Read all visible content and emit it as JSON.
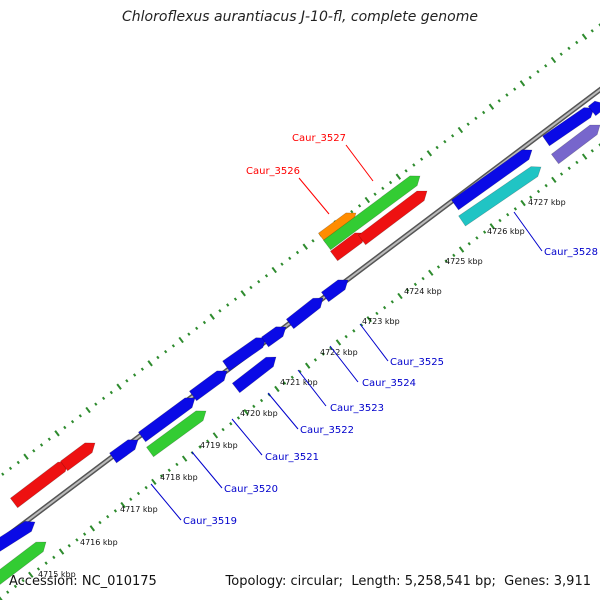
{
  "title": "Chloroflexus aurantiacus J-10-fl, complete genome",
  "footer": {
    "accession_label": "Accession:",
    "accession": "NC_010175",
    "topology_label": "Topology:",
    "topology": "circular",
    "length_label": "Length:",
    "length": "5,258,541 bp",
    "genes_label": "Genes:",
    "genes": "3,911"
  },
  "scale_labels": [
    "4715 kbp",
    "4716 kbp",
    "4717 kbp",
    "4718 kbp",
    "4719 kbp",
    "4720 kbp",
    "4721 kbp",
    "4722 kbp",
    "4723 kbp",
    "4724 kbp",
    "4725 kbp",
    "4726 kbp",
    "4727 kbp"
  ],
  "highlighted_genes": [
    {
      "label": "Caur_3526",
      "color": "#ff0000"
    },
    {
      "label": "Caur_3527",
      "color": "#ff0000"
    }
  ],
  "labeled_genes": [
    {
      "label": "Caur_3519",
      "color": "#0000cc"
    },
    {
      "label": "Caur_3520",
      "color": "#0000cc"
    },
    {
      "label": "Caur_3521",
      "color": "#0000cc"
    },
    {
      "label": "Caur_3522",
      "color": "#0000cc"
    },
    {
      "label": "Caur_3523",
      "color": "#0000cc"
    },
    {
      "label": "Caur_3524",
      "color": "#0000cc"
    },
    {
      "label": "Caur_3525",
      "color": "#0000cc"
    },
    {
      "label": "Caur_3528",
      "color": "#0000cc"
    }
  ],
  "feature_colors": {
    "backbone": "#808080",
    "dots": "#2e8b2e",
    "blue": "#0a0ae6",
    "green": "#33cc33",
    "red": "#ee1111",
    "orange": "#ff8c00",
    "cyan": "#20c4c4",
    "purple": "#7766cc"
  }
}
